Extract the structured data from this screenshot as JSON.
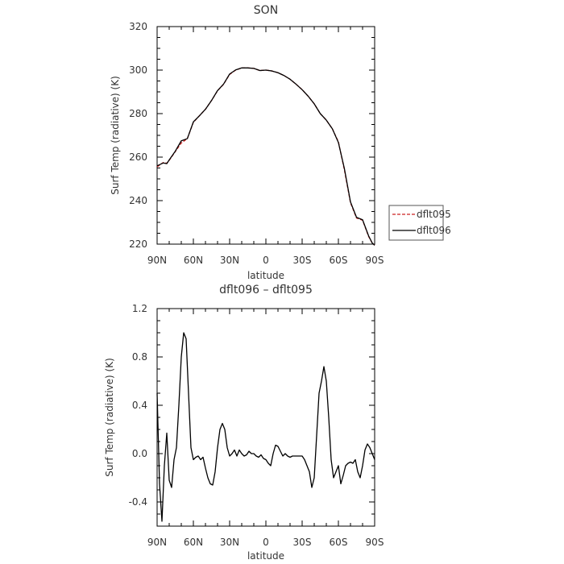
{
  "chart_data": [
    {
      "type": "line",
      "title": "SON",
      "xlabel": "latitude",
      "ylabel": "Surf Temp (radiative) (K)",
      "x_ticks": [
        90,
        60,
        30,
        0,
        -30,
        -60,
        -90
      ],
      "x_tick_labels": [
        "90N",
        "60N",
        "30N",
        "0",
        "30S",
        "60S",
        "90S"
      ],
      "xlim": [
        90,
        -90
      ],
      "ylim": [
        220,
        320
      ],
      "y_ticks": [
        220,
        240,
        260,
        280,
        300,
        320
      ],
      "y_tick_labels": [
        "220",
        "240",
        "260",
        "280",
        "300",
        "320"
      ],
      "grid": false,
      "legend_placement": "outside-right",
      "series": [
        {
          "name": "dflt095",
          "color": "#cc2222",
          "dash": "dashed",
          "x": [
            90,
            85,
            82,
            80,
            75,
            70,
            65,
            60,
            55,
            50,
            45,
            40,
            35,
            30,
            25,
            20,
            15,
            10,
            5,
            0,
            -5,
            -10,
            -15,
            -20,
            -25,
            -30,
            -35,
            -40,
            -45,
            -50,
            -55,
            -60,
            -65,
            -70,
            -75,
            -80,
            -85,
            -88,
            -90
          ],
          "y": [
            255.5,
            257.5,
            257.2,
            258.5,
            262.5,
            266.5,
            268.5,
            276.0,
            279.0,
            282.0,
            286.0,
            290.5,
            293.5,
            298.0,
            300.0,
            301.0,
            301.0,
            300.8,
            299.8,
            300.0,
            299.6,
            298.8,
            297.5,
            295.8,
            293.5,
            291.0,
            288.0,
            284.5,
            280.0,
            277.0,
            273.0,
            267.0,
            254.0,
            239.0,
            232.0,
            231.0,
            223.5,
            220.5,
            219.5
          ]
        },
        {
          "name": "dflt096",
          "color": "#000000",
          "dash": "solid",
          "x": [
            90,
            85,
            82,
            80,
            75,
            70,
            65,
            60,
            55,
            50,
            45,
            40,
            35,
            30,
            25,
            20,
            15,
            10,
            5,
            0,
            -5,
            -10,
            -15,
            -20,
            -25,
            -30,
            -35,
            -40,
            -45,
            -50,
            -55,
            -60,
            -65,
            -70,
            -75,
            -80,
            -85,
            -88,
            -90
          ],
          "y": [
            256.0,
            257.3,
            257.0,
            258.7,
            262.7,
            267.5,
            268.5,
            276.2,
            279.0,
            282.0,
            286.0,
            290.6,
            293.6,
            298.2,
            300.1,
            301.0,
            301.0,
            300.8,
            299.8,
            300.0,
            299.6,
            298.8,
            297.5,
            295.8,
            293.5,
            291.0,
            288.0,
            284.5,
            280.0,
            277.0,
            273.0,
            266.7,
            254.6,
            239.4,
            232.3,
            231.2,
            223.8,
            220.5,
            219.5
          ]
        }
      ]
    },
    {
      "type": "line",
      "title": "dflt096 – dflt095",
      "xlabel": "latitude",
      "ylabel": "Surf Temp (radiative) (K)",
      "x_ticks": [
        90,
        60,
        30,
        0,
        -30,
        -60,
        -90
      ],
      "x_tick_labels": [
        "90N",
        "60N",
        "30N",
        "0",
        "30S",
        "60S",
        "90S"
      ],
      "xlim": [
        90,
        -90
      ],
      "ylim": [
        -0.6,
        1.2
      ],
      "y_ticks": [
        -0.4,
        0.0,
        0.4,
        0.8,
        1.2
      ],
      "y_tick_labels": [
        "-0.4",
        "0.0",
        "0.4",
        "0.8",
        "1.2"
      ],
      "grid": false,
      "series": [
        {
          "name": "",
          "color": "#000000",
          "dash": "solid",
          "x": [
            90,
            88,
            86,
            84,
            82,
            80,
            78,
            76,
            74,
            72,
            70,
            68,
            66,
            64,
            62,
            60,
            58,
            56,
            54,
            52,
            50,
            48,
            46,
            44,
            42,
            40,
            38,
            36,
            34,
            32,
            30,
            28,
            26,
            24,
            22,
            20,
            18,
            16,
            14,
            12,
            10,
            8,
            6,
            4,
            2,
            0,
            -2,
            -4,
            -6,
            -8,
            -10,
            -12,
            -14,
            -16,
            -18,
            -20,
            -22,
            -24,
            -26,
            -28,
            -30,
            -32,
            -34,
            -36,
            -38,
            -40,
            -42,
            -44,
            -46,
            -48,
            -50,
            -52,
            -54,
            -56,
            -58,
            -60,
            -62,
            -64,
            -66,
            -68,
            -70,
            -72,
            -74,
            -76,
            -78,
            -80,
            -82,
            -84,
            -86,
            -88,
            -90
          ],
          "y": [
            0.5,
            -0.25,
            -0.56,
            -0.1,
            0.17,
            -0.22,
            -0.28,
            -0.05,
            0.05,
            0.4,
            0.8,
            1.0,
            0.95,
            0.5,
            0.05,
            -0.05,
            -0.03,
            -0.02,
            -0.05,
            -0.03,
            -0.12,
            -0.2,
            -0.25,
            -0.26,
            -0.15,
            0.05,
            0.2,
            0.25,
            0.2,
            0.05,
            -0.02,
            0.0,
            0.03,
            -0.02,
            0.03,
            0.0,
            -0.02,
            -0.01,
            0.02,
            0.0,
            0.0,
            -0.02,
            -0.03,
            -0.01,
            -0.04,
            -0.05,
            -0.08,
            -0.1,
            0.0,
            0.07,
            0.06,
            0.02,
            -0.02,
            0.0,
            -0.02,
            -0.03,
            -0.02,
            -0.02,
            -0.02,
            -0.02,
            -0.02,
            -0.05,
            -0.1,
            -0.15,
            -0.28,
            -0.2,
            0.15,
            0.5,
            0.6,
            0.72,
            0.6,
            0.3,
            -0.05,
            -0.2,
            -0.15,
            -0.1,
            -0.25,
            -0.18,
            -0.1,
            -0.08,
            -0.07,
            -0.08,
            -0.05,
            -0.15,
            -0.2,
            -0.1,
            0.03,
            0.08,
            0.05,
            0.0,
            -0.05
          ]
        }
      ]
    }
  ]
}
